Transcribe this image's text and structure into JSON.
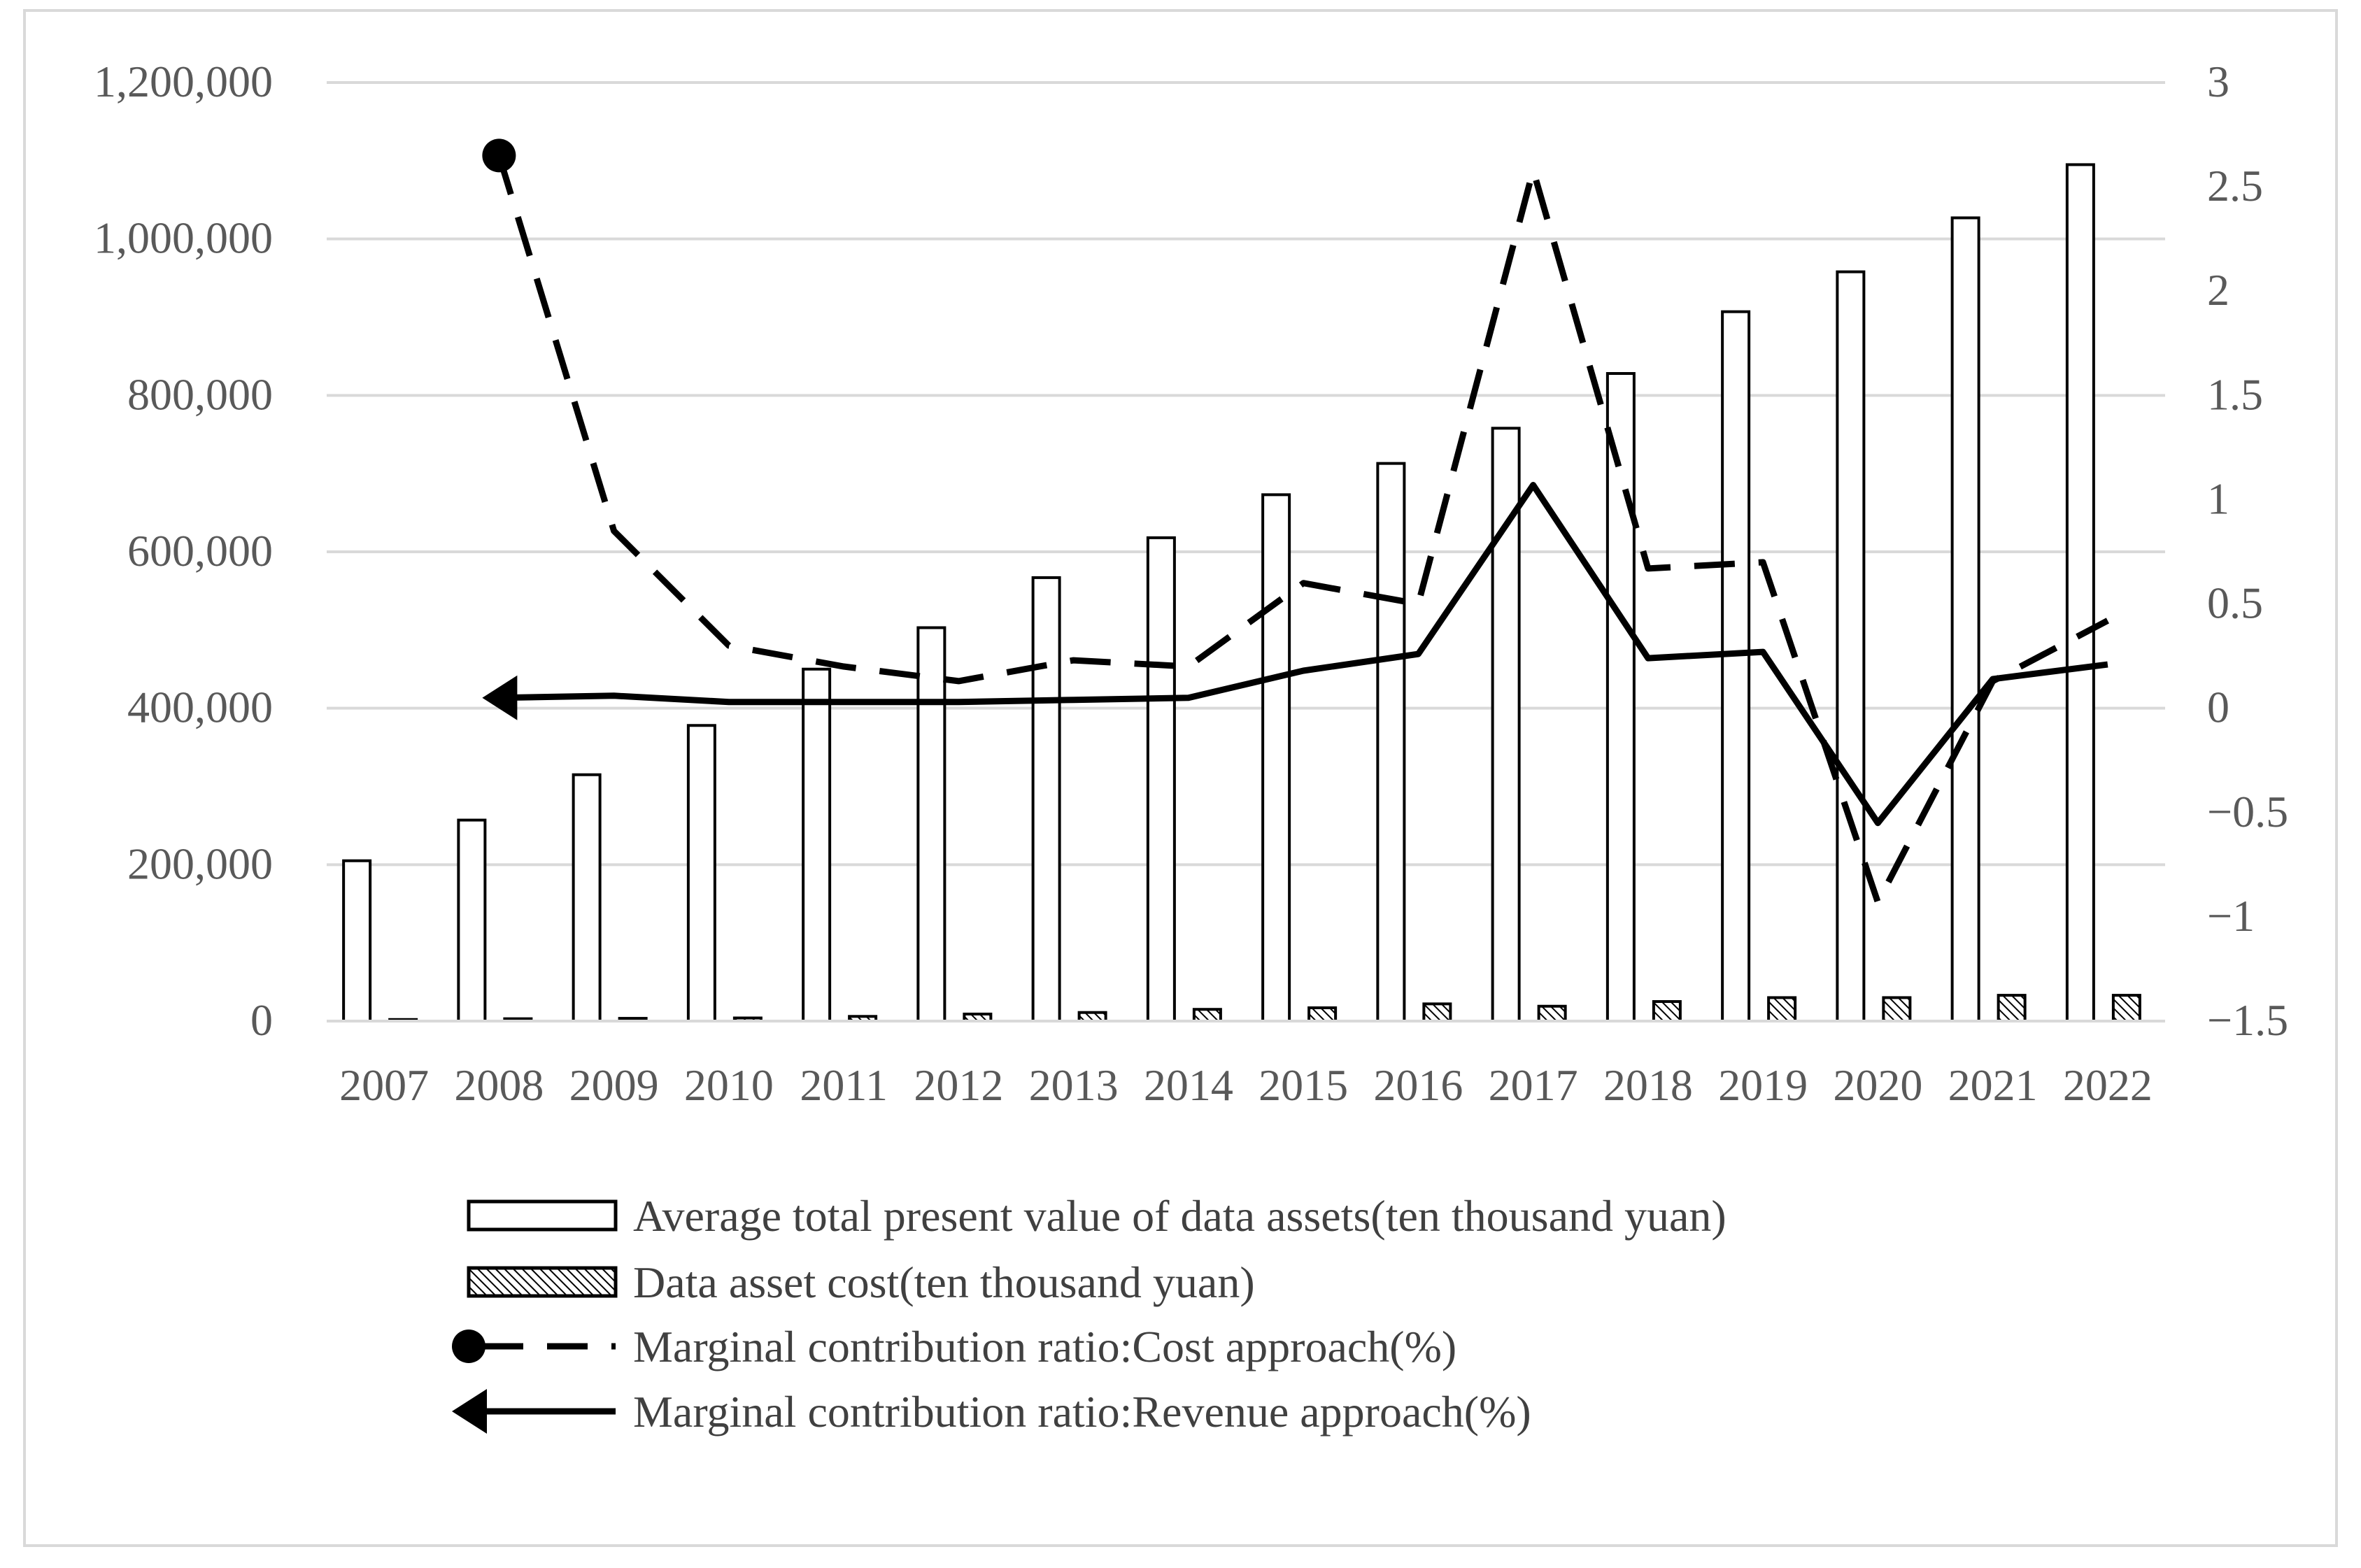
{
  "chart_data": {
    "type": "bar",
    "categories": [
      "2007",
      "2008",
      "2009",
      "2010",
      "2011",
      "2012",
      "2013",
      "2014",
      "2015",
      "2016",
      "2017",
      "2018",
      "2019",
      "2020",
      "2021",
      "2022"
    ],
    "y_left": {
      "ylim": [
        0,
        1200000
      ],
      "ticks": [
        0,
        200000,
        400000,
        600000,
        800000,
        1000000,
        1200000
      ],
      "tick_labels": [
        "0",
        "200,000",
        "400,000",
        "600,000",
        "800,000",
        "1,000,000",
        "1,200,000"
      ]
    },
    "y_right": {
      "ylim": [
        -1.5,
        3
      ],
      "ticks": [
        -1.5,
        -1,
        -0.5,
        0,
        0.5,
        1,
        1.5,
        2,
        2.5,
        3
      ],
      "tick_labels": [
        "−1.5",
        "−1",
        "−0.5",
        "0",
        "0.5",
        "1",
        "1.5",
        "2",
        "2.5",
        "3"
      ]
    },
    "grid": true,
    "legend_position": "bottom",
    "series": [
      {
        "name": "Average total present value of data assets(ten thousand yuan)",
        "type": "bar",
        "axis": "left",
        "pattern": "open",
        "values": [
          205000,
          257000,
          315000,
          378000,
          450000,
          503000,
          567000,
          618000,
          673000,
          713000,
          758000,
          828000,
          907000,
          958000,
          1027000,
          1095000
        ]
      },
      {
        "name": "Data asset cost(ten thousand yuan)",
        "type": "bar",
        "axis": "left",
        "pattern": "hatched",
        "values": [
          2000,
          3000,
          3500,
          4000,
          6000,
          9000,
          11000,
          15000,
          17000,
          22000,
          19000,
          25000,
          30000,
          30000,
          33000,
          33000
        ]
      },
      {
        "name": "Marginal contribution ratio:Cost approach(%)",
        "type": "line",
        "axis": "right",
        "style": "dashed",
        "marker": "circle",
        "values": [
          null,
          2.65,
          0.85,
          0.3,
          0.2,
          0.13,
          0.23,
          0.2,
          0.6,
          0.5,
          2.58,
          0.67,
          0.7,
          -0.93,
          0.13,
          0.42
        ]
      },
      {
        "name": "Marginal contribution ratio:Revenue approach(%)",
        "type": "line",
        "axis": "right",
        "style": "solid",
        "marker": "arrow",
        "values": [
          null,
          0.05,
          0.06,
          0.03,
          0.03,
          0.03,
          0.04,
          0.05,
          0.18,
          0.26,
          1.07,
          0.24,
          0.27,
          -0.55,
          0.14,
          0.21
        ]
      }
    ]
  }
}
